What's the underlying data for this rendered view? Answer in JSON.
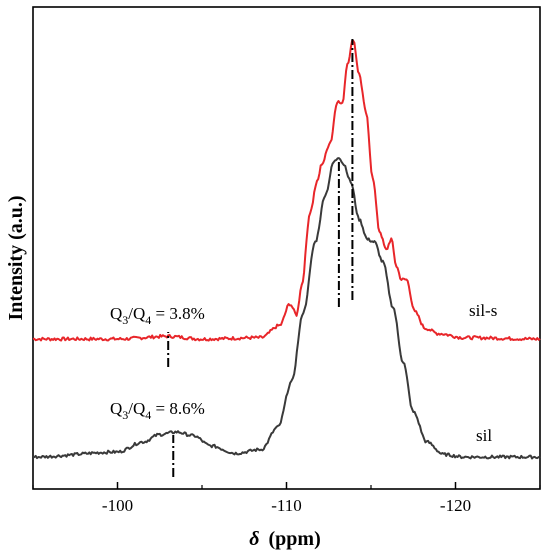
{
  "chart_data": {
    "type": "line",
    "title": "",
    "xlabel_symbol": "δ",
    "xlabel_unit": "(ppm)",
    "ylabel": "Intensity (a.u.)",
    "xlim": [
      -95,
      -125
    ],
    "x_ticks": [
      -100,
      -110,
      -120
    ],
    "x_tick_labels": [
      "-100",
      "-110",
      "-120"
    ],
    "y_ticks": "none",
    "grid": false,
    "legend": "none",
    "series": [
      {
        "name": "sil-s",
        "color": "#e8262a",
        "baseline_color": "#8a5a30",
        "x": [
          -95,
          -100,
          -103,
          -105,
          -108.5,
          -109.6,
          -110.2,
          -110.6,
          -110.9,
          -111.4,
          -111.8,
          -112.1,
          -112.6,
          -113.0,
          -113.3,
          -113.6,
          -113.95,
          -114.3,
          -114.7,
          -115.1,
          -115.5,
          -115.9,
          -116.2,
          -116.5,
          -116.8,
          -117.1,
          -117.6,
          -118.2,
          -119.0,
          -120.5,
          -125
        ],
        "values": [
          0.0,
          0.0,
          0.01,
          0.0,
          0.005,
          0.05,
          0.13,
          0.09,
          0.2,
          0.47,
          0.58,
          0.65,
          0.73,
          0.88,
          0.87,
          1.02,
          1.11,
          0.98,
          0.84,
          0.6,
          0.4,
          0.33,
          0.37,
          0.27,
          0.22,
          0.22,
          0.1,
          0.04,
          0.02,
          0.005,
          0.0
        ]
      },
      {
        "name": "sil",
        "color": "#3a3a3a",
        "x": [
          -95,
          -100,
          -101.5,
          -102.5,
          -103.5,
          -104.5,
          -105.5,
          -107,
          -108.5,
          -109.5,
          -110.3,
          -111.0,
          -111.7,
          -112.3,
          -112.8,
          -113.1,
          -113.4,
          -113.8,
          -114.3,
          -114.8,
          -115.2,
          -115.7,
          -116.3,
          -116.9,
          -117.5,
          -118.3,
          -119.3,
          -120.5,
          -125
        ],
        "values": [
          0.0,
          0.02,
          0.06,
          0.09,
          0.1,
          0.085,
          0.045,
          0.015,
          0.03,
          0.12,
          0.3,
          0.58,
          0.86,
          1.05,
          1.18,
          1.2,
          1.17,
          1.1,
          0.95,
          0.87,
          0.86,
          0.78,
          0.6,
          0.38,
          0.18,
          0.06,
          0.01,
          0.0,
          0.0
        ]
      }
    ],
    "markers": [
      {
        "x": -103.0,
        "series": "sil-s"
      },
      {
        "x": -113.9,
        "series": "sil-s"
      },
      {
        "x": -103.3,
        "series": "sil"
      },
      {
        "x": -113.1,
        "series": "sil"
      }
    ],
    "annotations": [
      {
        "series": "sil-s",
        "ratio_label": "Q",
        "sub1": "3",
        "slash": "/Q",
        "sub2": "4",
        "value": " = 3.8%"
      },
      {
        "series": "sil",
        "ratio_label": "Q",
        "sub1": "3",
        "slash": "/Q",
        "sub2": "4",
        "value": " = 8.6%"
      }
    ]
  }
}
